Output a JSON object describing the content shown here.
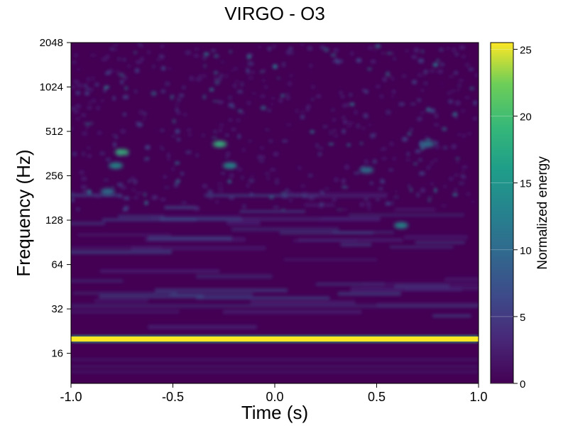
{
  "chart_data": {
    "type": "heatmap",
    "title": "VIRGO - O3",
    "xlabel": "Time (s)",
    "ylabel": "Frequency (Hz)",
    "xlim": [
      -1.0,
      1.0
    ],
    "ylim": [
      10,
      2048
    ],
    "yscale": "log2",
    "x_ticks": [
      -1.0,
      -0.5,
      0.0,
      0.5,
      1.0
    ],
    "x_tick_labels": [
      "-1.0",
      "-0.5",
      "0.0",
      "0.5",
      "1.0"
    ],
    "y_ticks": [
      16,
      32,
      64,
      128,
      256,
      512,
      1024,
      2048
    ],
    "y_tick_labels": [
      "16",
      "32",
      "64",
      "128",
      "256",
      "512",
      "1024",
      "2048"
    ],
    "colormap": "viridis",
    "colorbar": {
      "label": "Normalized energy",
      "range": [
        0,
        25.5
      ],
      "ticks": [
        0,
        5,
        10,
        15,
        20,
        25
      ],
      "tick_labels": [
        "0",
        "5",
        "10",
        "15",
        "20",
        "25"
      ]
    },
    "features": [
      {
        "kind": "horizontal_line",
        "frequency_hz": 20,
        "time_range": [
          -1.0,
          1.0
        ],
        "energy": 25
      },
      {
        "kind": "blob",
        "time": -0.75,
        "frequency_hz": 370,
        "energy": 12
      },
      {
        "kind": "blob",
        "time": -0.78,
        "frequency_hz": 300,
        "energy": 9
      },
      {
        "kind": "blob",
        "time": -0.27,
        "frequency_hz": 420,
        "energy": 11
      },
      {
        "kind": "blob",
        "time": -0.22,
        "frequency_hz": 300,
        "energy": 9
      },
      {
        "kind": "blob",
        "time": 0.62,
        "frequency_hz": 118,
        "energy": 10
      },
      {
        "kind": "blob",
        "time": -0.82,
        "frequency_hz": 200,
        "energy": 7
      },
      {
        "kind": "blob",
        "time": 0.45,
        "frequency_hz": 280,
        "energy": 6
      },
      {
        "kind": "blob",
        "time": 0.75,
        "frequency_hz": 420,
        "energy": 6
      }
    ],
    "colors": {
      "background": "#440154",
      "low": "#482878",
      "mid": "#21918c",
      "high": "#fde725"
    }
  }
}
